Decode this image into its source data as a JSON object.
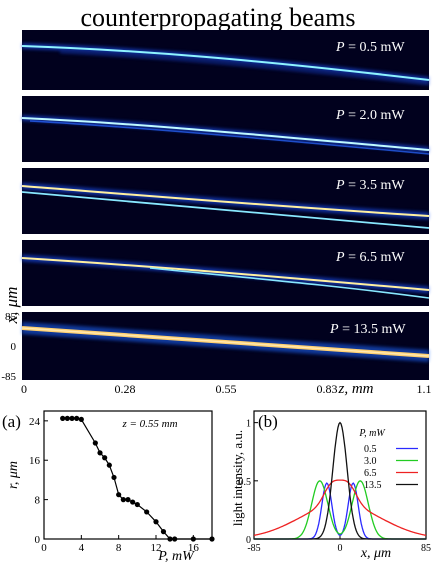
{
  "title": "counterpropagating beams",
  "top": {
    "panels": [
      {
        "power": "0.5 mW"
      },
      {
        "power": "2.0 mW"
      },
      {
        "power": "3.5 mW"
      },
      {
        "power": "6.5 mW"
      },
      {
        "power": "13.5 mW"
      }
    ],
    "p_symbol": "P",
    "eq": " = ",
    "ylabel": "x, μm",
    "y_ticks": [
      "85",
      "0",
      "-85"
    ],
    "x_ticks": [
      "0",
      "0.28",
      "0.55",
      "0.83",
      "1.1"
    ],
    "xlabel": "z, mm",
    "colors": {
      "background": "#01011e",
      "beam_core": "#fff6a0",
      "beam_edge": "#1a4dff"
    }
  },
  "chart_data": [
    {
      "panel": "(a)",
      "type": "line",
      "annotation": "z = 0.55 mm",
      "xlabel": "P, mW",
      "ylabel": "r, μm",
      "xlim": [
        0,
        18
      ],
      "ylim": [
        0,
        26
      ],
      "x_ticks": [
        "0",
        "4",
        "8",
        "12",
        "16"
      ],
      "y_ticks": [
        "0",
        "8",
        "16",
        "24"
      ],
      "x": [
        2.0,
        2.5,
        3.0,
        3.5,
        4.0,
        5.5,
        6.0,
        6.5,
        7.0,
        7.5,
        8.0,
        8.5,
        9.0,
        9.5,
        10.0,
        11.0,
        12.0,
        12.8,
        13.5,
        14.0,
        16.0,
        18.0
      ],
      "y": [
        24.5,
        24.5,
        24.5,
        24.5,
        24.3,
        19.5,
        17.5,
        16.5,
        15.0,
        12.5,
        9.0,
        8.0,
        8.0,
        7.5,
        7.0,
        5.5,
        3.5,
        1.5,
        0.0,
        0.0,
        0.0,
        0.0
      ]
    },
    {
      "panel": "(b)",
      "type": "line",
      "xlabel": "x, μm",
      "ylabel": "light intensity, a.u.",
      "xlim": [
        -85,
        85
      ],
      "ylim": [
        0,
        1.1
      ],
      "x_ticks": [
        "-85",
        "0",
        "85"
      ],
      "y_ticks": [
        "0",
        "0.5",
        "1"
      ],
      "legend_title": "P, mW",
      "legend_position": "top-right",
      "series": [
        {
          "name": "0.5",
          "color": "#2a2aff",
          "peaks": [
            {
              "x": -13,
              "h": 0.48,
              "w": 5
            },
            {
              "x": 13,
              "h": 0.48,
              "w": 5
            }
          ]
        },
        {
          "name": "3.0",
          "color": "#22cc22",
          "peaks": [
            {
              "x": -20,
              "h": 0.5,
              "w": 8
            },
            {
              "x": 20,
              "h": 0.5,
              "w": 8
            }
          ]
        },
        {
          "name": "6.5",
          "color": "#ee2222",
          "base": {
            "h": 0.3,
            "w": 40
          },
          "peaks": [
            {
              "x": -8,
              "h": 0.17,
              "w": 8
            },
            {
              "x": 8,
              "h": 0.17,
              "w": 8
            }
          ]
        },
        {
          "name": "13.5",
          "color": "#111111",
          "peaks": [
            {
              "x": 0,
              "h": 1.0,
              "w": 7
            }
          ]
        }
      ]
    }
  ]
}
